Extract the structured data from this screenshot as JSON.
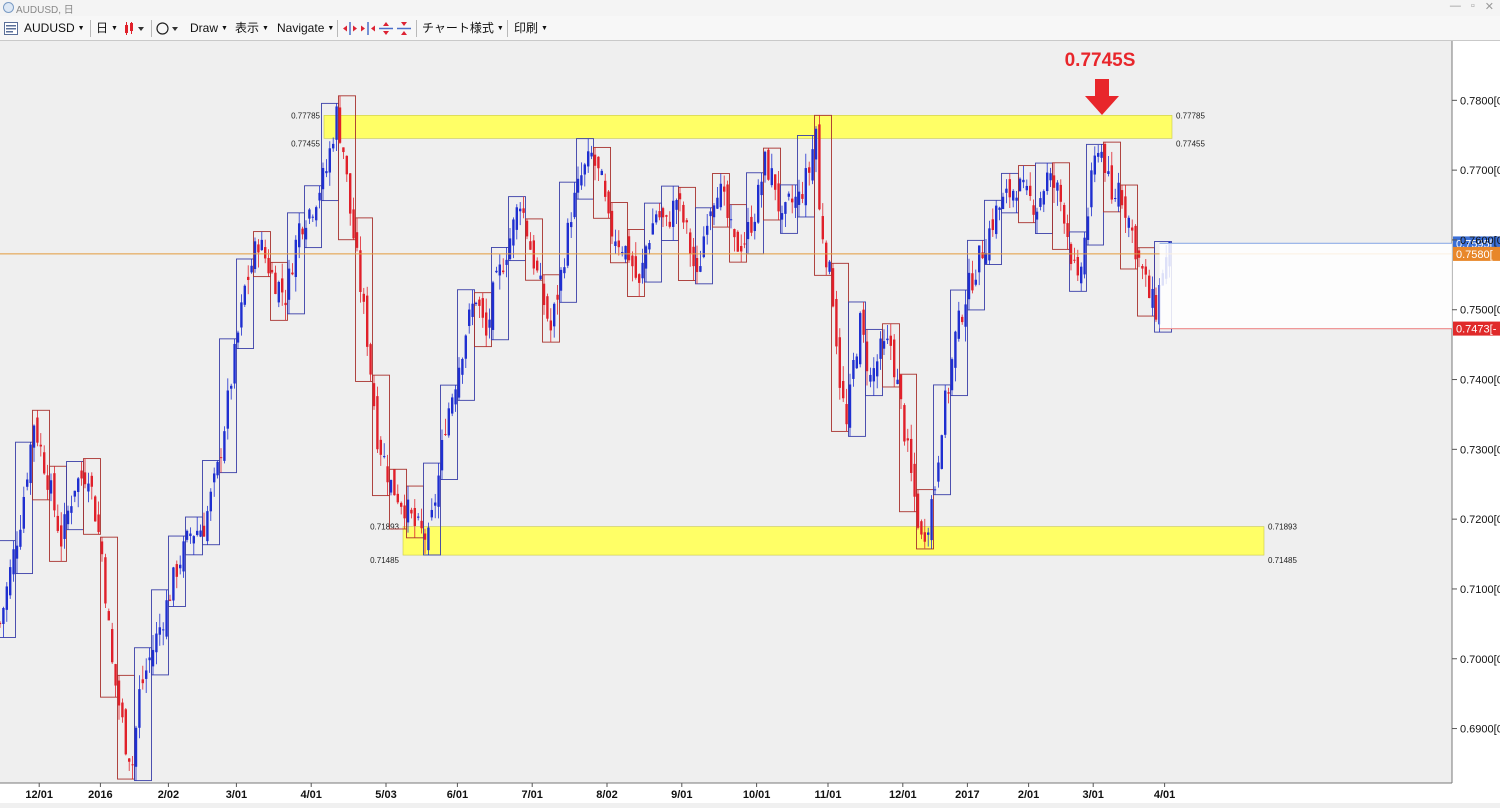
{
  "window": {
    "title": "AUDUSD, 日"
  },
  "toolbar": {
    "symbol": "AUDUSD",
    "timeframe": "日",
    "draw": "Draw",
    "view": "表示",
    "navigate": "Navigate",
    "chart_style": "チャート様式",
    "print": "印刷"
  },
  "annotation": {
    "label": "0.7745S",
    "color": "#e8262b"
  },
  "colors": {
    "up_candle": "#1f2fd0",
    "down_candle": "#e0202a",
    "up_box": "#3a3fa8",
    "down_box": "#a8322e",
    "zone": "#ffff66",
    "price_line": "#e39b3c",
    "background": "#efefef"
  },
  "zones": [
    {
      "top": 0.77785,
      "bottom": 0.77455,
      "label_top": "0.77785",
      "label_bottom": "0.77455"
    },
    {
      "top": 0.71893,
      "bottom": 0.71485,
      "label_top": "0.71893",
      "label_bottom": "0.71485"
    }
  ],
  "price_tags": [
    {
      "value": 0.7595,
      "text": "0.7595[",
      "color": "#3b6fd6"
    },
    {
      "value": 0.758,
      "text": "0.7580[",
      "color": "#e8872a"
    },
    {
      "value": 0.7473,
      "text": "0.7473[-",
      "color": "#e02a2a"
    }
  ],
  "chart_data": {
    "type": "candlestick",
    "symbol": "AUDUSD",
    "timeframe": "daily",
    "ylim": [
      0.6822,
      0.7885
    ],
    "y_ticks": [
      "0.7800[0",
      "0.7700[0",
      "0.7600[0",
      "0.7500[0",
      "0.7400[0",
      "0.7300[0",
      "0.7200[0",
      "0.7100[0",
      "0.7000[0",
      "0.6900[0"
    ],
    "y_tick_values": [
      0.78,
      0.77,
      0.76,
      0.75,
      0.74,
      0.73,
      0.72,
      0.71,
      0.7,
      0.69
    ],
    "x_ticks": [
      "12/01",
      "2016",
      "2/02",
      "3/01",
      "4/01",
      "5/03",
      "6/01",
      "7/01",
      "8/02",
      "9/01",
      "10/01",
      "11/01",
      "12/01",
      "2017",
      "2/01",
      "3/01",
      "4/01"
    ],
    "x_tick_bar_index": [
      8,
      26,
      46,
      66,
      88,
      110,
      131,
      153,
      175,
      197,
      219,
      240,
      262,
      281,
      299,
      318,
      339
    ],
    "close_path": [
      [
        0,
        0.705
      ],
      [
        6,
        0.72
      ],
      [
        10,
        0.734
      ],
      [
        14,
        0.726
      ],
      [
        18,
        0.717
      ],
      [
        22,
        0.725
      ],
      [
        26,
        0.727
      ],
      [
        30,
        0.715
      ],
      [
        33,
        0.699
      ],
      [
        37,
        0.688
      ],
      [
        39,
        0.685
      ],
      [
        41,
        0.695
      ],
      [
        44,
        0.7
      ],
      [
        48,
        0.706
      ],
      [
        52,
        0.713
      ],
      [
        56,
        0.718
      ],
      [
        60,
        0.719
      ],
      [
        64,
        0.727
      ],
      [
        68,
        0.74
      ],
      [
        72,
        0.753
      ],
      [
        76,
        0.76
      ],
      [
        80,
        0.755
      ],
      [
        84,
        0.752
      ],
      [
        88,
        0.762
      ],
      [
        92,
        0.765
      ],
      [
        96,
        0.77
      ],
      [
        99,
        0.778
      ],
      [
        101,
        0.773
      ],
      [
        103,
        0.764
      ],
      [
        105,
        0.757
      ],
      [
        108,
        0.746
      ],
      [
        111,
        0.732
      ],
      [
        115,
        0.725
      ],
      [
        119,
        0.722
      ],
      [
        122,
        0.719
      ],
      [
        126,
        0.717
      ],
      [
        129,
        0.726
      ],
      [
        131,
        0.734
      ],
      [
        134,
        0.74
      ],
      [
        137,
        0.747
      ],
      [
        140,
        0.752
      ],
      [
        143,
        0.746
      ],
      [
        145,
        0.752
      ],
      [
        148,
        0.757
      ],
      [
        151,
        0.762
      ],
      [
        153,
        0.766
      ],
      [
        156,
        0.759
      ],
      [
        159,
        0.753
      ],
      [
        162,
        0.747
      ],
      [
        165,
        0.755
      ],
      [
        168,
        0.764
      ],
      [
        171,
        0.769
      ],
      [
        174,
        0.772
      ],
      [
        177,
        0.768
      ],
      [
        179,
        0.762
      ],
      [
        182,
        0.76
      ],
      [
        185,
        0.758
      ],
      [
        188,
        0.753
      ],
      [
        190,
        0.759
      ],
      [
        193,
        0.764
      ],
      [
        196,
        0.762
      ],
      [
        199,
        0.766
      ],
      [
        202,
        0.761
      ],
      [
        205,
        0.754
      ],
      [
        208,
        0.764
      ],
      [
        211,
        0.768
      ],
      [
        213,
        0.765
      ],
      [
        216,
        0.759
      ],
      [
        219,
        0.76
      ],
      [
        222,
        0.764
      ],
      [
        225,
        0.771
      ],
      [
        228,
        0.768
      ],
      [
        230,
        0.762
      ],
      [
        232,
        0.765
      ],
      [
        235,
        0.766
      ],
      [
        238,
        0.77
      ],
      [
        240,
        0.776
      ],
      [
        241,
        0.764
      ],
      [
        243,
        0.758
      ],
      [
        245,
        0.752
      ],
      [
        247,
        0.74
      ],
      [
        249,
        0.733
      ],
      [
        251,
        0.742
      ],
      [
        253,
        0.748
      ],
      [
        256,
        0.74
      ],
      [
        259,
        0.744
      ],
      [
        262,
        0.745
      ],
      [
        265,
        0.736
      ],
      [
        268,
        0.726
      ],
      [
        271,
        0.717
      ],
      [
        273,
        0.72
      ],
      [
        275,
        0.725
      ],
      [
        277,
        0.734
      ],
      [
        279,
        0.739
      ],
      [
        281,
        0.746
      ],
      [
        284,
        0.752
      ],
      [
        287,
        0.756
      ],
      [
        290,
        0.76
      ],
      [
        293,
        0.764
      ],
      [
        296,
        0.766
      ],
      [
        299,
        0.768
      ],
      [
        302,
        0.766
      ],
      [
        305,
        0.765
      ],
      [
        308,
        0.769
      ],
      [
        311,
        0.767
      ],
      [
        313,
        0.764
      ],
      [
        315,
        0.758
      ],
      [
        317,
        0.753
      ],
      [
        319,
        0.76
      ],
      [
        321,
        0.768
      ],
      [
        323,
        0.774
      ],
      [
        325,
        0.771
      ],
      [
        327,
        0.765
      ],
      [
        329,
        0.768
      ],
      [
        332,
        0.763
      ],
      [
        335,
        0.757
      ],
      [
        338,
        0.752
      ],
      [
        340,
        0.75
      ],
      [
        342,
        0.756
      ],
      [
        344,
        0.758
      ]
    ]
  }
}
